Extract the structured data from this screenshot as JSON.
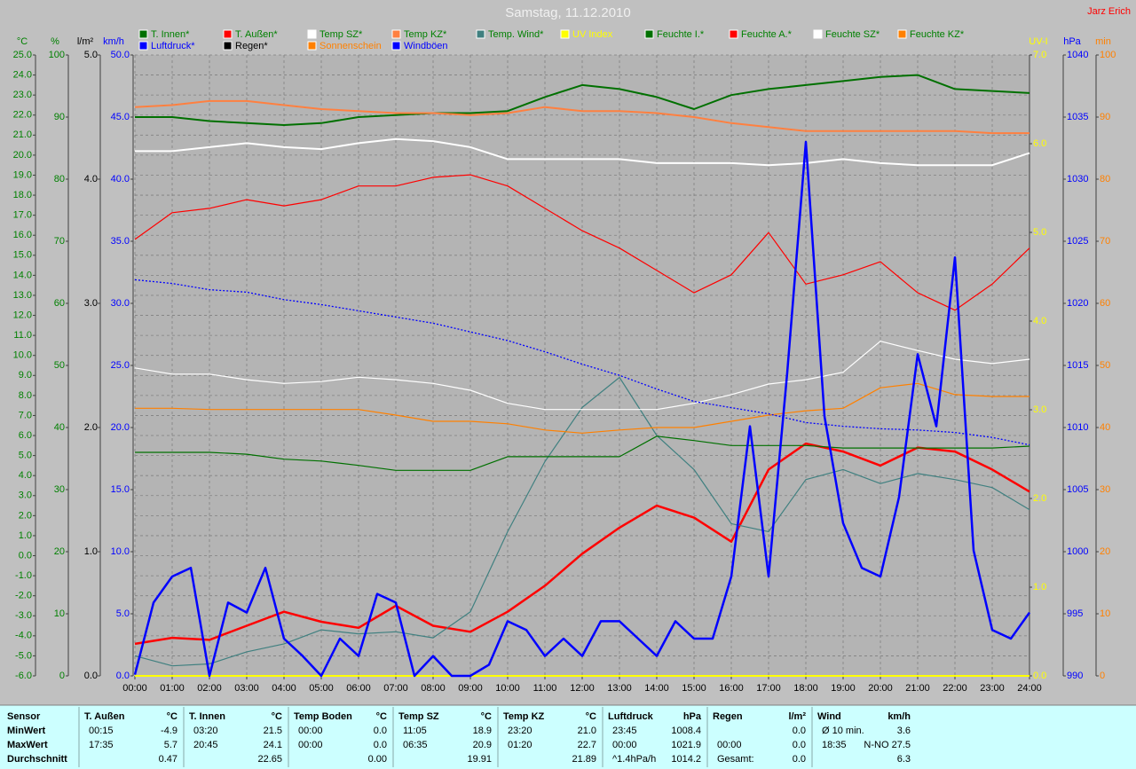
{
  "chart_data": {
    "type": "line",
    "title": "Samstag, 11.12.2010",
    "author": "Jarz Erich",
    "grid": true,
    "xlim": [
      0,
      24
    ],
    "x": [
      0,
      1,
      2,
      3,
      4,
      5,
      6,
      7,
      8,
      9,
      10,
      11,
      12,
      13,
      14,
      15,
      16,
      17,
      18,
      19,
      20,
      21,
      22,
      23,
      24
    ],
    "xticks": [
      {
        "value": 0,
        "label": "00:00"
      },
      {
        "value": 1,
        "label": "01:00"
      },
      {
        "value": 2,
        "label": "02:00"
      },
      {
        "value": 3,
        "label": "03:00"
      },
      {
        "value": 4,
        "label": "04:00"
      },
      {
        "value": 5,
        "label": "05:00"
      },
      {
        "value": 6,
        "label": "06:00"
      },
      {
        "value": 7,
        "label": "07:00"
      },
      {
        "value": 8,
        "label": "08:00"
      },
      {
        "value": 9,
        "label": "09:00"
      },
      {
        "value": 10,
        "label": "10:00"
      },
      {
        "value": 11,
        "label": "11:00"
      },
      {
        "value": 12,
        "label": "12:00"
      },
      {
        "value": 13,
        "label": "13:00"
      },
      {
        "value": 14,
        "label": "14:00"
      },
      {
        "value": 15,
        "label": "15:00"
      },
      {
        "value": 16,
        "label": "16:00"
      },
      {
        "value": 17,
        "label": "17:00"
      },
      {
        "value": 18,
        "label": "18:00"
      },
      {
        "value": 19,
        "label": "19:00"
      },
      {
        "value": 20,
        "label": "20:00"
      },
      {
        "value": 21,
        "label": "21:00"
      },
      {
        "value": 22,
        "label": "22:00"
      },
      {
        "value": 23,
        "label": "23:00"
      },
      {
        "value": 24,
        "label": "24:00"
      }
    ],
    "axes": [
      {
        "label": "°C",
        "color": "#008000",
        "lim": [
          -6,
          25
        ],
        "ticks": [
          {
            "value": -6,
            "label": "-6.0"
          },
          {
            "value": -5,
            "label": "-5.0"
          },
          {
            "value": -4,
            "label": "-4.0"
          },
          {
            "value": -3,
            "label": "-3.0"
          },
          {
            "value": -2,
            "label": "-2.0"
          },
          {
            "value": -1,
            "label": "-1.0"
          },
          {
            "value": 0,
            "label": "0.0"
          },
          {
            "value": 1,
            "label": "1.0"
          },
          {
            "value": 2,
            "label": "2.0"
          },
          {
            "value": 3,
            "label": "3.0"
          },
          {
            "value": 4,
            "label": "4.0"
          },
          {
            "value": 5,
            "label": "5.0"
          },
          {
            "value": 6,
            "label": "6.0"
          },
          {
            "value": 7,
            "label": "7.0"
          },
          {
            "value": 8,
            "label": "8.0"
          },
          {
            "value": 9,
            "label": "9.0"
          },
          {
            "value": 10,
            "label": "10.0"
          },
          {
            "value": 11,
            "label": "11.0"
          },
          {
            "value": 12,
            "label": "12.0"
          },
          {
            "value": 13,
            "label": "13.0"
          },
          {
            "value": 14,
            "label": "14.0"
          },
          {
            "value": 15,
            "label": "15.0"
          },
          {
            "value": 16,
            "label": "16.0"
          },
          {
            "value": 17,
            "label": "17.0"
          },
          {
            "value": 18,
            "label": "18.0"
          },
          {
            "value": 19,
            "label": "19.0"
          },
          {
            "value": 20,
            "label": "20.0"
          },
          {
            "value": 21,
            "label": "21.0"
          },
          {
            "value": 22,
            "label": "22.0"
          },
          {
            "value": 23,
            "label": "23.0"
          },
          {
            "value": 24,
            "label": "24.0"
          },
          {
            "value": 25,
            "label": "25.0"
          }
        ]
      },
      {
        "label": "%",
        "color": "#008000",
        "lim": [
          0,
          100
        ],
        "ticks": [
          0,
          10,
          20,
          30,
          40,
          50,
          60,
          70,
          80,
          90,
          100
        ]
      },
      {
        "label": "l/m²",
        "color": "#000000",
        "lim": [
          0,
          5
        ],
        "ticks": [
          {
            "value": 0,
            "label": "0.0"
          },
          {
            "value": 1,
            "label": "1.0"
          },
          {
            "value": 2,
            "label": "2.0"
          },
          {
            "value": 3,
            "label": "3.0"
          },
          {
            "value": 4,
            "label": "4.0"
          },
          {
            "value": 5,
            "label": "5.0"
          }
        ]
      },
      {
        "label": "km/h",
        "color": "#0000ff",
        "lim": [
          0,
          50
        ],
        "ticks": [
          {
            "value": 0,
            "label": "0.0"
          },
          {
            "value": 5,
            "label": "5.0"
          },
          {
            "value": 10,
            "label": "10.0"
          },
          {
            "value": 15,
            "label": "15.0"
          },
          {
            "value": 20,
            "label": "20.0"
          },
          {
            "value": 25,
            "label": "25.0"
          },
          {
            "value": 30,
            "label": "30.0"
          },
          {
            "value": 35,
            "label": "35.0"
          },
          {
            "value": 40,
            "label": "40.0"
          },
          {
            "value": 45,
            "label": "45.0"
          },
          {
            "value": 50,
            "label": "50.0"
          }
        ]
      },
      {
        "label": "UV-I",
        "color": "#ffff00",
        "lim": [
          0,
          7
        ],
        "ticks": [
          {
            "value": 0,
            "label": "0.0"
          },
          {
            "value": 1,
            "label": "1.0"
          },
          {
            "value": 2,
            "label": "2.0"
          },
          {
            "value": 3,
            "label": "3.0"
          },
          {
            "value": 4,
            "label": "4.0"
          },
          {
            "value": 5,
            "label": "5.0"
          },
          {
            "value": 6,
            "label": "6.0"
          },
          {
            "value": 7,
            "label": "7.0"
          }
        ]
      },
      {
        "label": "hPa",
        "color": "#0000ff",
        "lim": [
          990,
          1040
        ],
        "ticks": [
          990,
          995,
          1000,
          1005,
          1010,
          1015,
          1020,
          1025,
          1030,
          1035,
          1040
        ]
      },
      {
        "label": "min",
        "color": "#ff8000",
        "lim": [
          0,
          100
        ],
        "ticks": [
          0,
          10,
          20,
          30,
          40,
          50,
          60,
          70,
          80,
          90,
          100
        ]
      }
    ],
    "series": [
      {
        "name": "T. Innen*",
        "color": "#007000",
        "label_color": "#008000",
        "axis": 0,
        "style": "normal",
        "values": [
          21.9,
          21.9,
          21.7,
          21.6,
          21.5,
          21.6,
          21.9,
          22.0,
          22.1,
          22.1,
          22.2,
          22.9,
          23.5,
          23.3,
          22.9,
          22.3,
          23.0,
          23.3,
          23.5,
          23.7,
          23.9,
          24.0,
          23.3,
          23.2,
          23.1
        ]
      },
      {
        "name": "T. Außen*",
        "color": "#ff0000",
        "label_color": "#008000",
        "axis": 0,
        "style": "bold",
        "values": [
          -4.4,
          -4.1,
          -4.2,
          -3.5,
          -2.8,
          -3.3,
          -3.6,
          -2.5,
          -3.5,
          -3.8,
          -2.8,
          -1.5,
          0.1,
          1.4,
          2.5,
          1.9,
          0.7,
          4.3,
          5.6,
          5.2,
          4.5,
          5.4,
          5.2,
          4.3,
          3.2
        ]
      },
      {
        "name": "Temp SZ*",
        "color": "#ffffff",
        "label_color": "#008000",
        "axis": 0,
        "style": "normal",
        "values": [
          20.2,
          20.2,
          20.4,
          20.6,
          20.4,
          20.3,
          20.6,
          20.8,
          20.7,
          20.4,
          19.8,
          19.8,
          19.8,
          19.8,
          19.6,
          19.6,
          19.6,
          19.5,
          19.6,
          19.8,
          19.6,
          19.5,
          19.5,
          19.5,
          20.1
        ]
      },
      {
        "name": "Temp KZ*",
        "color": "#ff8040",
        "label_color": "#008000",
        "axis": 0,
        "style": "normal",
        "values": [
          22.4,
          22.5,
          22.7,
          22.7,
          22.5,
          22.3,
          22.2,
          22.1,
          22.1,
          22.0,
          22.1,
          22.4,
          22.2,
          22.2,
          22.1,
          21.9,
          21.6,
          21.4,
          21.2,
          21.2,
          21.2,
          21.2,
          21.2,
          21.1,
          21.1
        ]
      },
      {
        "name": "Temp. Wind*",
        "color": "#408080",
        "label_color": "#008000",
        "axis": 0,
        "style": "thin",
        "values": [
          -5.0,
          -5.5,
          -5.4,
          -4.8,
          -4.4,
          -3.7,
          -3.9,
          -3.8,
          -4.1,
          -2.8,
          1.2,
          4.7,
          7.4,
          8.9,
          6.0,
          4.3,
          1.6,
          1.2,
          3.8,
          4.3,
          3.6,
          4.1,
          3.8,
          3.4,
          2.3
        ]
      },
      {
        "name": "UV Index",
        "color": "#ffff00",
        "label_color": "#ffff00",
        "axis": 4,
        "style": "normal",
        "values": [
          0,
          0,
          0,
          0,
          0,
          0,
          0,
          0,
          0,
          0,
          0,
          0,
          0,
          0,
          0,
          0,
          0,
          0,
          0,
          0,
          0,
          0,
          0,
          0,
          0
        ]
      },
      {
        "name": "Feuchte I.*",
        "color": "#007000",
        "label_color": "#008000",
        "axis": 1,
        "style": "thin",
        "values": [
          36,
          36,
          36,
          35.7,
          34.9,
          34.6,
          33.9,
          33.1,
          33.1,
          33.1,
          35.3,
          35.3,
          35.3,
          35.3,
          38.6,
          37.9,
          37.1,
          37.1,
          37.1,
          36.7,
          36.7,
          36.7,
          36.7,
          36.7,
          37.0
        ]
      },
      {
        "name": "Feuchte A.*",
        "color": "#ff0000",
        "label_color": "#008000",
        "axis": 1,
        "style": "thin",
        "values": [
          70.3,
          74.6,
          75.3,
          76.7,
          75.7,
          76.7,
          78.9,
          78.9,
          80.3,
          80.7,
          78.9,
          75.3,
          71.7,
          68.9,
          65.3,
          61.7,
          64.6,
          71.4,
          63.1,
          64.6,
          66.7,
          61.7,
          58.9,
          63.1,
          68.9
        ]
      },
      {
        "name": "Feuchte SZ*",
        "color": "#ffffff",
        "label_color": "#008000",
        "axis": 1,
        "style": "thin",
        "values": [
          49.6,
          48.6,
          48.6,
          47.7,
          47.1,
          47.4,
          48.1,
          47.7,
          47.1,
          46,
          43.9,
          42.9,
          42.9,
          42.9,
          42.9,
          43.9,
          45.3,
          47,
          47.7,
          48.9,
          53.9,
          52.4,
          51,
          50.3,
          51
        ]
      },
      {
        "name": "Feuchte KZ*",
        "color": "#ff8000",
        "label_color": "#008000",
        "axis": 1,
        "style": "thin",
        "values": [
          43.1,
          43.1,
          42.9,
          42.9,
          42.9,
          42.9,
          42.9,
          42,
          41,
          41,
          40.6,
          39.6,
          39.1,
          39.6,
          40,
          40,
          41,
          42,
          42.7,
          43.1,
          46.4,
          47.1,
          45.3,
          45,
          45
        ]
      },
      {
        "name": "Luftdruck*",
        "color": "#0000ff",
        "label_color": "#0000ff",
        "axis": 5,
        "style": "dotted",
        "values": [
          1021.9,
          1021.6,
          1021.1,
          1020.9,
          1020.3,
          1019.9,
          1019.4,
          1018.9,
          1018.4,
          1017.7,
          1017.0,
          1016.1,
          1015.1,
          1014.2,
          1013.1,
          1012.1,
          1011.6,
          1011.1,
          1010.4,
          1010.1,
          1009.9,
          1009.8,
          1009.6,
          1009.2,
          1008.6
        ]
      },
      {
        "name": "Regen*",
        "color": "#000000",
        "label_color": "#000000",
        "axis": 2
      },
      {
        "name": "Sonnenschein",
        "color": "#ff8000",
        "label_color": "#ff8000",
        "axis": 6
      },
      {
        "name": "Windböen",
        "color": "#0000ff",
        "label_color": "#0000ff",
        "axis": 3,
        "style": "bold",
        "x": [
          0,
          0.5,
          1,
          1.5,
          2,
          2.5,
          3,
          3.5,
          4,
          4.5,
          5,
          5.5,
          6,
          6.5,
          7,
          7.5,
          8,
          8.5,
          9,
          9.5,
          10,
          10.5,
          11,
          11.5,
          12,
          12.5,
          13,
          13.5,
          14,
          14.5,
          15,
          15.5,
          16,
          16.5,
          17,
          17.5,
          18,
          18.5,
          19,
          19.5,
          20,
          20.5,
          21,
          21.5,
          22,
          22.5,
          23,
          23.5,
          24
        ],
        "values": [
          0.1,
          5.9,
          8,
          8.7,
          0,
          5.9,
          5.1,
          8.7,
          3,
          1.6,
          0,
          3,
          1.6,
          6.6,
          5.9,
          0,
          1.6,
          0,
          0,
          0.9,
          4.4,
          3.7,
          1.6,
          3,
          1.6,
          4.4,
          4.4,
          3,
          1.6,
          4.4,
          3,
          3,
          8,
          20.1,
          8,
          24.4,
          43,
          20.9,
          12.3,
          8.7,
          8,
          14.4,
          25.9,
          20.1,
          33.7,
          10.1,
          3.7,
          3,
          5.1
        ]
      }
    ]
  },
  "table": {
    "row_labels": [
      "Sensor",
      "MinWert",
      "MaxWert",
      "Durchschnitt"
    ],
    "columns": [
      {
        "name": "T. Außen",
        "unit": "°C",
        "rows": [
          [
            "00:15",
            "-4.9"
          ],
          [
            "17:35",
            "5.7"
          ],
          [
            null,
            "0.47"
          ]
        ]
      },
      {
        "name": "T. Innen",
        "unit": "°C",
        "rows": [
          [
            "03:20",
            "21.5"
          ],
          [
            "20:45",
            "24.1"
          ],
          [
            null,
            "22.65"
          ]
        ]
      },
      {
        "name": "Temp Boden",
        "unit": "°C",
        "rows": [
          [
            "00:00",
            "0.0"
          ],
          [
            "00:00",
            "0.0"
          ],
          [
            null,
            "0.00"
          ]
        ]
      },
      {
        "name": "Temp SZ",
        "unit": "°C",
        "rows": [
          [
            "11:05",
            "18.9"
          ],
          [
            "06:35",
            "20.9"
          ],
          [
            null,
            "19.91"
          ]
        ]
      },
      {
        "name": "Temp KZ",
        "unit": "°C",
        "rows": [
          [
            "23:20",
            "21.0"
          ],
          [
            "01:20",
            "22.7"
          ],
          [
            null,
            "21.89"
          ]
        ]
      },
      {
        "name": "Luftdruck",
        "unit": "hPa",
        "rows": [
          [
            "23:45",
            "1008.4"
          ],
          [
            "00:00",
            "1021.9"
          ],
          [
            "^1.4hPa/h",
            "1014.2"
          ]
        ]
      },
      {
        "name": "Regen",
        "unit": "l/m²",
        "rows": [
          [
            null,
            "0.0"
          ],
          [
            "00:00",
            "0.0"
          ],
          [
            "Gesamt:",
            "0.0"
          ]
        ]
      },
      {
        "name": "Wind",
        "unit": "km/h",
        "rows": [
          [
            "Ø 10 min.",
            "3.6"
          ],
          [
            "18:35",
            "N-NO 27.5"
          ],
          [
            null,
            "6.3"
          ]
        ]
      }
    ]
  }
}
